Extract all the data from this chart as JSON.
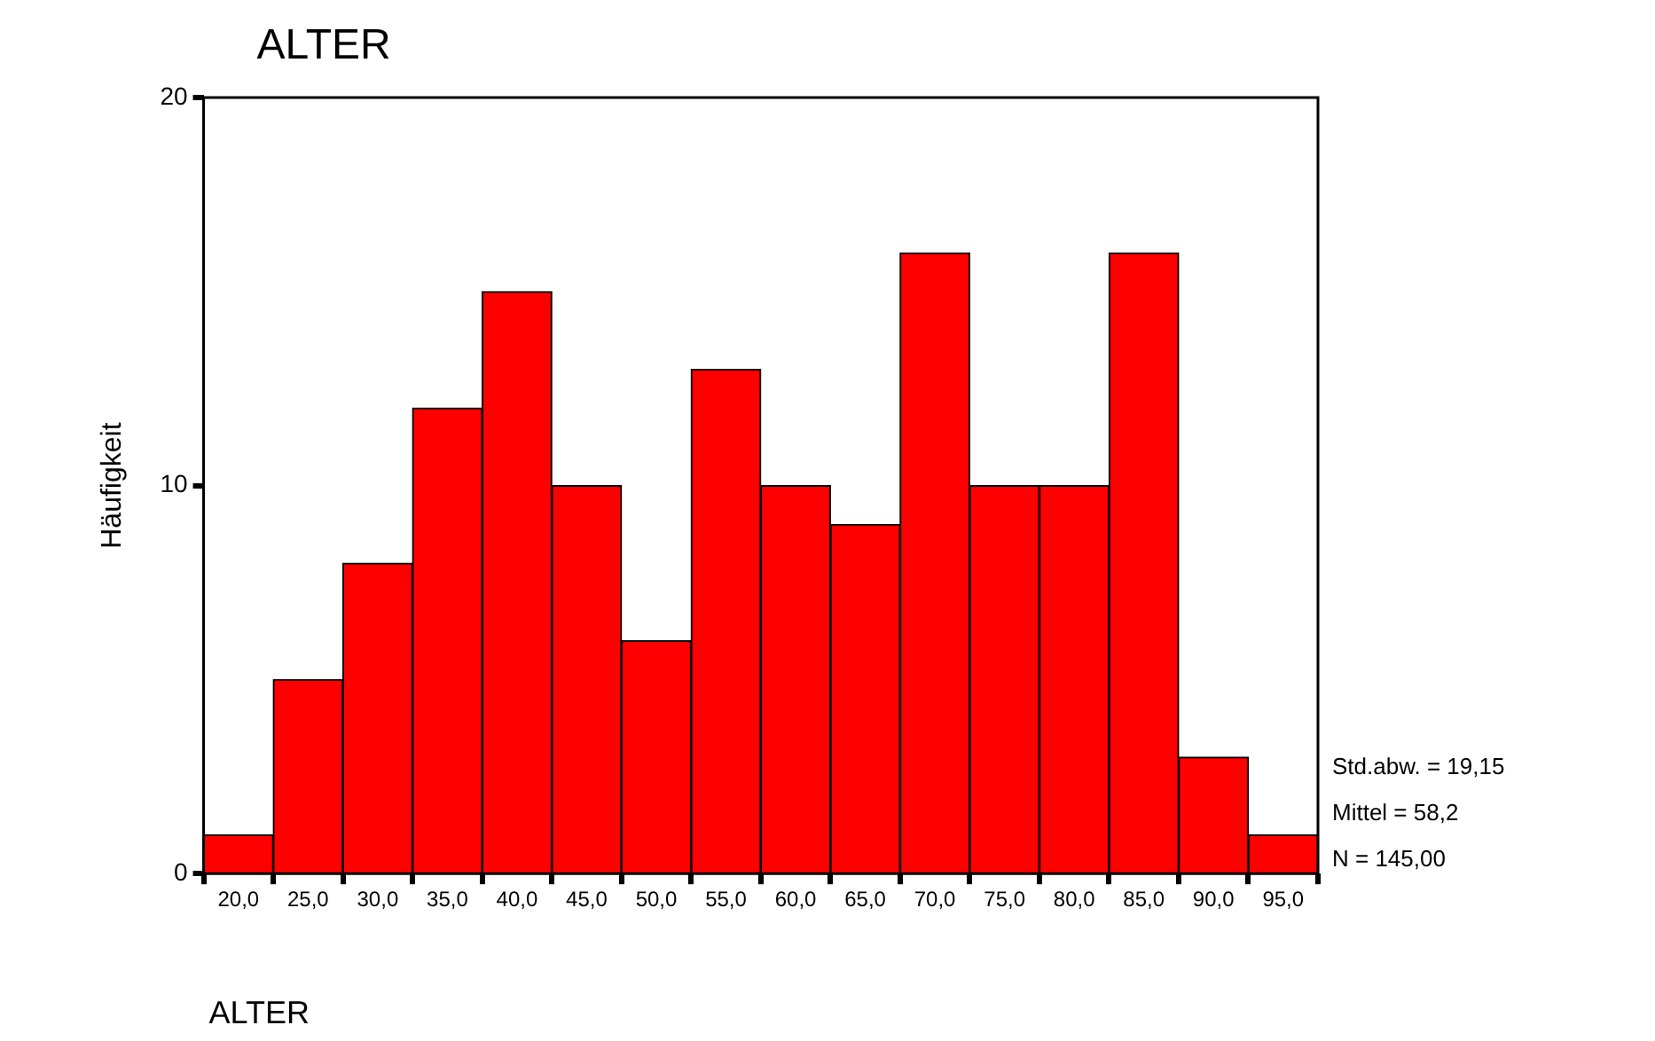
{
  "chart_data": {
    "type": "histogram",
    "title": "ALTER",
    "xlabel": "ALTER",
    "ylabel": "Häufigkeit",
    "bins": [
      17.5,
      22.5,
      27.5,
      32.5,
      37.5,
      42.5,
      47.5,
      52.5,
      57.5,
      62.5,
      67.5,
      72.5,
      77.5,
      82.5,
      87.5,
      92.5,
      97.5
    ],
    "values": [
      1,
      5,
      8,
      12,
      15,
      10,
      6,
      13,
      10,
      9,
      16,
      10,
      10,
      16,
      3,
      1
    ],
    "color": "#ff0000",
    "xlim": [
      17.5,
      97.5
    ],
    "xticks": [
      {
        "value": 20,
        "label": "20,0"
      },
      {
        "value": 25,
        "label": "25,0"
      },
      {
        "value": 30,
        "label": "30,0"
      },
      {
        "value": 35,
        "label": "35,0"
      },
      {
        "value": 40,
        "label": "40,0"
      },
      {
        "value": 45,
        "label": "45,0"
      },
      {
        "value": 50,
        "label": "50,0"
      },
      {
        "value": 55,
        "label": "55,0"
      },
      {
        "value": 60,
        "label": "60,0"
      },
      {
        "value": 65,
        "label": "65,0"
      },
      {
        "value": 70,
        "label": "70,0"
      },
      {
        "value": 75,
        "label": "75,0"
      },
      {
        "value": 80,
        "label": "80,0"
      },
      {
        "value": 85,
        "label": "85,0"
      },
      {
        "value": 90,
        "label": "90,0"
      },
      {
        "value": 95,
        "label": "95,0"
      }
    ],
    "ylim": [
      0,
      20
    ],
    "yticks": [
      0,
      10,
      20
    ],
    "grid": false,
    "legend": false,
    "annotations": [
      "Std.abw. = 19,15",
      "Mittel = 58,2",
      "N = 145,00"
    ]
  }
}
